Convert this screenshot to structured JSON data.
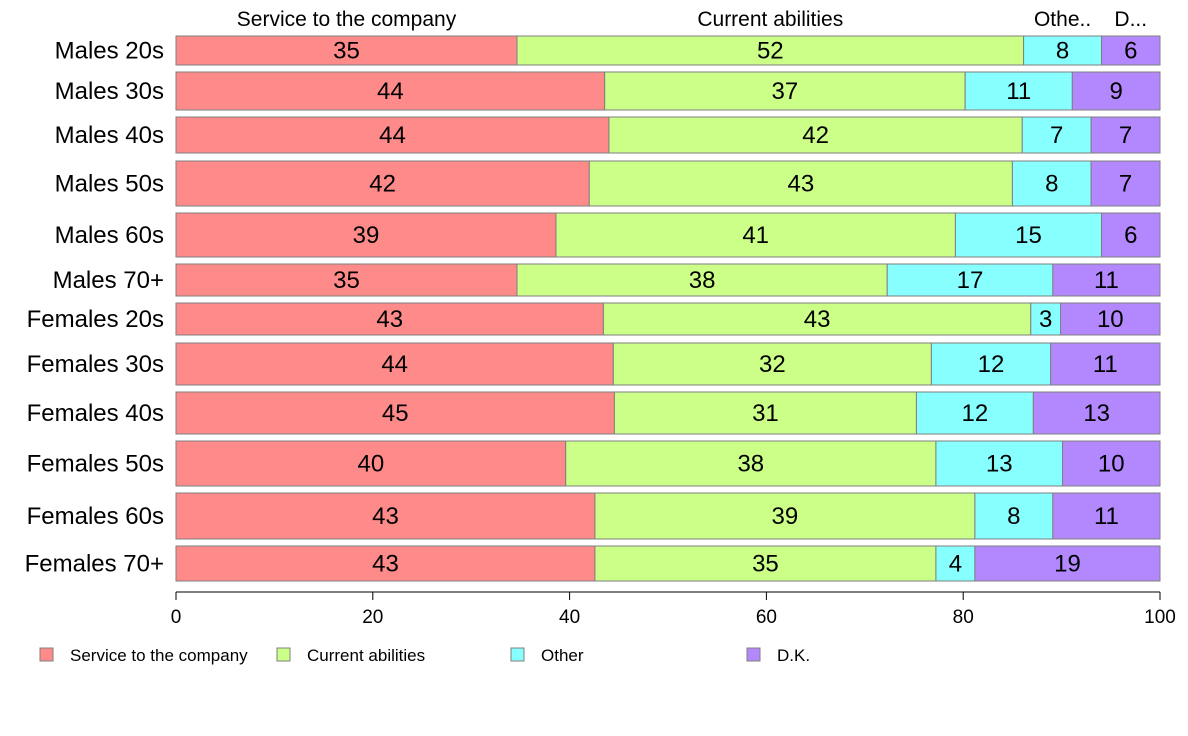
{
  "chart_data": {
    "type": "bar",
    "orientation": "horizontal",
    "stacked": true,
    "categories": [
      "Males 20s",
      "Males 30s",
      "Males 40s",
      "Males 50s",
      "Males 60s",
      "Males 70+",
      "Females 20s",
      "Females 30s",
      "Females 40s",
      "Females 50s",
      "Females 60s",
      "Females 70+"
    ],
    "series": [
      {
        "name": "Service to the company",
        "color": "#ff8a8a",
        "values": [
          35,
          44,
          44,
          42,
          39,
          35,
          43,
          44,
          45,
          40,
          43,
          43
        ]
      },
      {
        "name": "Current abilities",
        "color": "#ccff88",
        "values": [
          52,
          37,
          42,
          43,
          41,
          38,
          43,
          32,
          31,
          38,
          39,
          35
        ]
      },
      {
        "name": "Other",
        "color": "#88ffff",
        "values": [
          8,
          11,
          7,
          8,
          15,
          17,
          3,
          12,
          12,
          13,
          8,
          4
        ]
      },
      {
        "name": "D.K.",
        "color": "#b388ff",
        "values": [
          6,
          9,
          7,
          7,
          6,
          11,
          10,
          11,
          13,
          10,
          11,
          19
        ]
      }
    ],
    "column_headers": [
      "Service to the company",
      "Current abilities",
      "Othe..",
      "D..."
    ],
    "xlim": [
      0,
      100
    ],
    "xticks": [
      "0",
      "20",
      "40",
      "60",
      "80",
      "100"
    ],
    "grid": false,
    "legend_position": "bottom"
  }
}
